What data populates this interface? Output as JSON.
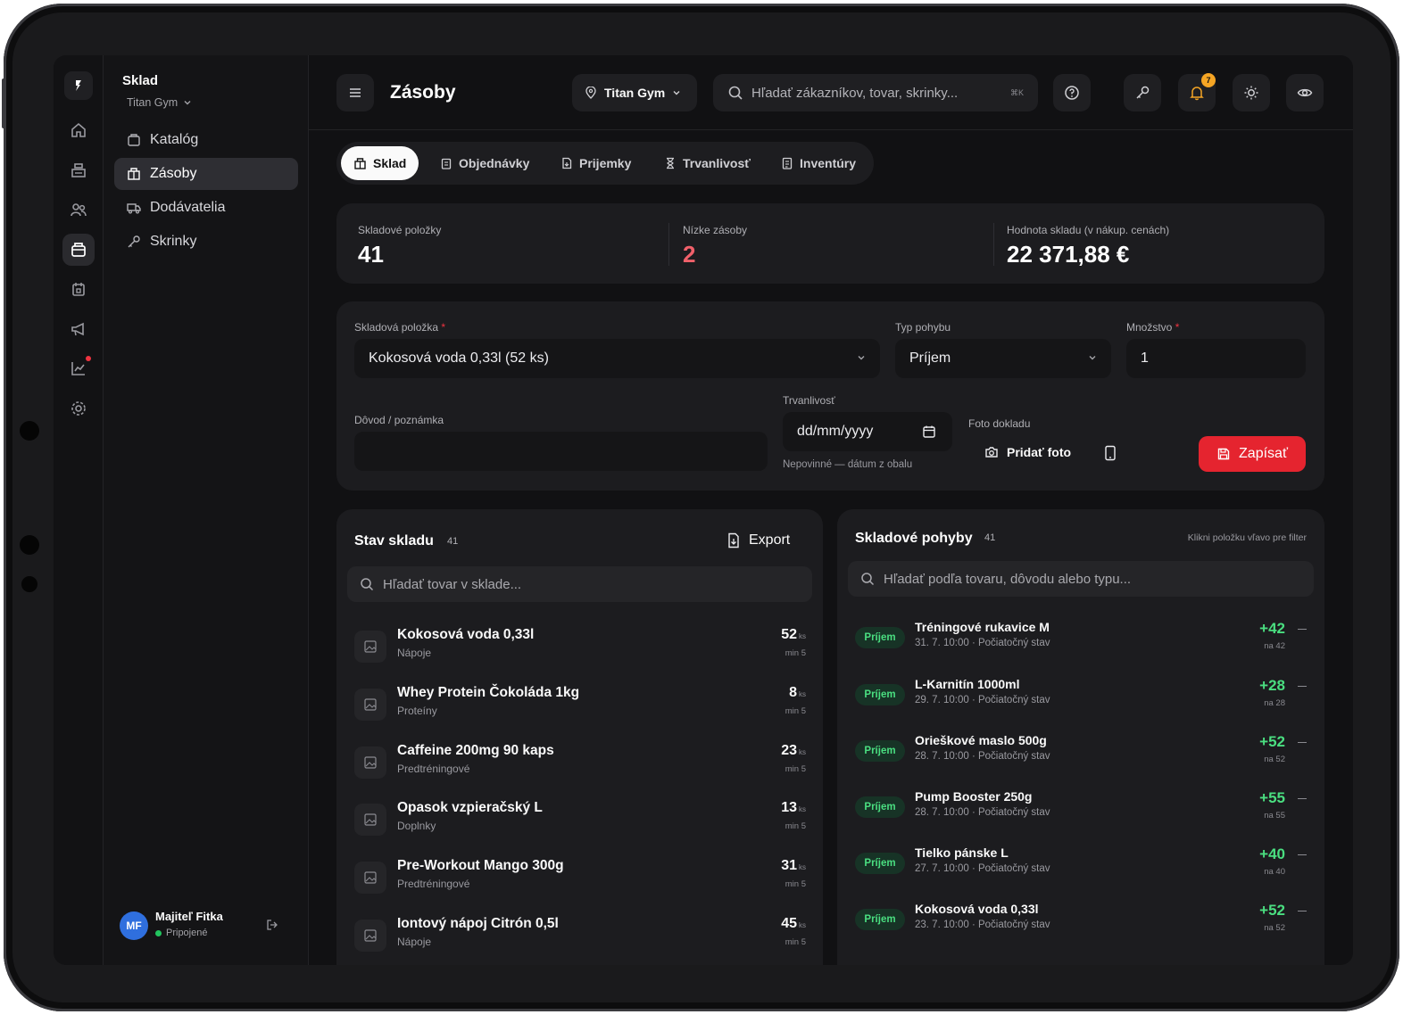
{
  "sidebar": {
    "title": "Sklad",
    "gym": "Titan Gym",
    "items": [
      {
        "label": "Katalóg"
      },
      {
        "label": "Zásoby"
      },
      {
        "label": "Dodávatelia"
      },
      {
        "label": "Skrinky"
      }
    ],
    "user": {
      "initials": "MF",
      "name": "Majiteľ Fitka",
      "status": "Pripojené"
    }
  },
  "header": {
    "title": "Zásoby",
    "gym_select": "Titan Gym",
    "search_placeholder": "Hľadať zákazníkov, tovar, skrinky...",
    "shortcut": "⌘K",
    "notifications_count": "7"
  },
  "tabs": [
    {
      "label": "Sklad"
    },
    {
      "label": "Objednávky"
    },
    {
      "label": "Prijemky"
    },
    {
      "label": "Trvanlivosť"
    },
    {
      "label": "Inventúry"
    }
  ],
  "stats": [
    {
      "label": "Skladové položky",
      "value": "41"
    },
    {
      "label": "Nízke zásoby",
      "value": "2"
    },
    {
      "label": "Hodnota skladu (v nákup. cenách)",
      "value": "22 371,88 €"
    }
  ],
  "form": {
    "item_label": "Skladová položka",
    "item_value": "Kokosová voda 0,33l (52 ks)",
    "type_label": "Typ pohybu",
    "type_value": "Príjem",
    "qty_label": "Množstvo",
    "qty_value": "1",
    "reason_label": "Dôvod / poznámka",
    "reason_value": "",
    "expiry_label": "Trvanlivosť",
    "expiry_placeholder": "dd/mm/yyyy",
    "expiry_hint": "Nepovinné — dátum z obalu",
    "photo_label": "Foto dokladu",
    "photo_button": "Pridať foto",
    "submit": "Zapísať"
  },
  "stock": {
    "title": "Stav skladu",
    "count": "41",
    "export": "Export",
    "search_placeholder": "Hľadať tovar v sklade...",
    "rows": [
      {
        "name": "Kokosová voda 0,33l",
        "category": "Nápoje",
        "qty": "52",
        "unit": "ks",
        "min": "min 5"
      },
      {
        "name": "Whey Protein Čokoláda 1kg",
        "category": "Proteíny",
        "qty": "8",
        "unit": "ks",
        "min": "min 5"
      },
      {
        "name": "Caffeine 200mg 90 kaps",
        "category": "Predtréningové",
        "qty": "23",
        "unit": "ks",
        "min": "min 5"
      },
      {
        "name": "Opasok vzpieračský L",
        "category": "Doplnky",
        "qty": "13",
        "unit": "ks",
        "min": "min 5"
      },
      {
        "name": "Pre-Workout Mango 300g",
        "category": "Predtréningové",
        "qty": "31",
        "unit": "ks",
        "min": "min 5"
      },
      {
        "name": "Iontový nápoj Citrón 0,5l",
        "category": "Nápoje",
        "qty": "45",
        "unit": "ks",
        "min": "min 5"
      }
    ]
  },
  "movements": {
    "title": "Skladové pohyby",
    "count": "41",
    "hint": "Klikni položku vľavo pre filter",
    "search_placeholder": "Hľadať podľa tovaru, dôvodu alebo typu...",
    "rows": [
      {
        "type": "Príjem",
        "name": "Tréningové rukavice M",
        "meta": "31. 7. 10:00 · Počiatočný stav",
        "delta": "+42",
        "after": "na 42"
      },
      {
        "type": "Príjem",
        "name": "L-Karnitín 1000ml",
        "meta": "29. 7. 10:00 · Počiatočný stav",
        "delta": "+28",
        "after": "na 28"
      },
      {
        "type": "Príjem",
        "name": "Orieškové maslo 500g",
        "meta": "28. 7. 10:00 · Počiatočný stav",
        "delta": "+52",
        "after": "na 52"
      },
      {
        "type": "Príjem",
        "name": "Pump Booster 250g",
        "meta": "28. 7. 10:00 · Počiatočný stav",
        "delta": "+55",
        "after": "na 55"
      },
      {
        "type": "Príjem",
        "name": "Tielko pánske L",
        "meta": "27. 7. 10:00 · Počiatočný stav",
        "delta": "+40",
        "after": "na 40"
      },
      {
        "type": "Príjem",
        "name": "Kokosová voda 0,33l",
        "meta": "23. 7. 10:00 · Počiatočný stav",
        "delta": "+52",
        "after": "na 52"
      }
    ]
  },
  "colors": {
    "accent": "#e5242f",
    "success": "#4ade80",
    "warning": "#f5a524",
    "danger_text": "#f0606a"
  }
}
